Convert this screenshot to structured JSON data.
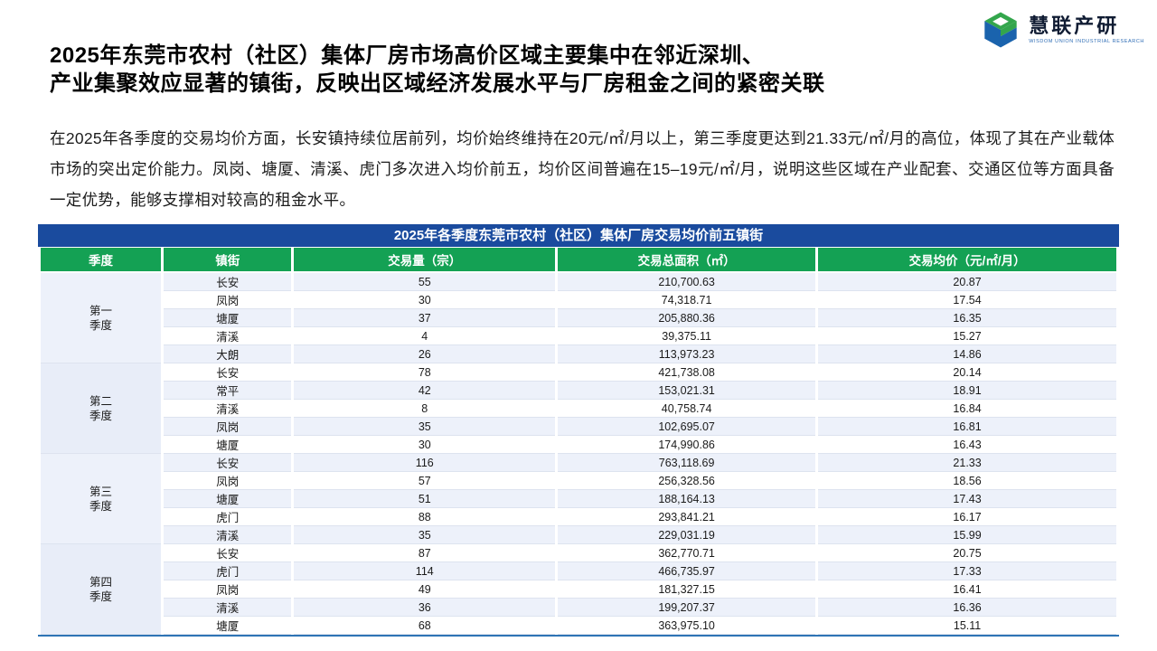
{
  "header": {
    "title_line1": "2025年东莞市农村（社区）集体厂房市场高价区域主要集中在邻近深圳、",
    "title_line2": "产业集聚效应显著的镇街，反映出区域经济发展水平与厂房租金之间的紧密关联",
    "logo": {
      "name": "慧联产研",
      "tagline": "WISDOM UNION INDUSTRIAL RESEARCH"
    }
  },
  "intro": "在2025年各季度的交易均价方面，长安镇持续位居前列，均价始终维持在20元/㎡/月以上，第三季度更达到21.33元/㎡/月的高位，体现了其在产业载体市场的突出定价能力。凤岗、塘厦、清溪、虎门多次进入均价前五，均价区间普遍在15–19元/㎡/月，说明这些区域在产业配套、交通区位等方面具备一定优势，能够支撑相对较高的租金水平。",
  "table": {
    "title": "2025年各季度东莞市农村（社区）集体厂房交易均价前五镇街",
    "columns": [
      "季度",
      "镇街",
      "交易量（宗）",
      "交易总面积（㎡）",
      "交易均价（元/㎡/月）"
    ],
    "quarters": [
      {
        "label": "第一\n季度",
        "rows": [
          [
            "长安",
            "55",
            "210,700.63",
            "20.87"
          ],
          [
            "凤岗",
            "30",
            "74,318.71",
            "17.54"
          ],
          [
            "塘厦",
            "37",
            "205,880.36",
            "16.35"
          ],
          [
            "清溪",
            "4",
            "39,375.11",
            "15.27"
          ],
          [
            "大朗",
            "26",
            "113,973.23",
            "14.86"
          ]
        ]
      },
      {
        "label": "第二\n季度",
        "rows": [
          [
            "长安",
            "78",
            "421,738.08",
            "20.14"
          ],
          [
            "常平",
            "42",
            "153,021.31",
            "18.91"
          ],
          [
            "清溪",
            "8",
            "40,758.74",
            "16.84"
          ],
          [
            "凤岗",
            "35",
            "102,695.07",
            "16.81"
          ],
          [
            "塘厦",
            "30",
            "174,990.86",
            "16.43"
          ]
        ]
      },
      {
        "label": "第三\n季度",
        "rows": [
          [
            "长安",
            "116",
            "763,118.69",
            "21.33"
          ],
          [
            "凤岗",
            "57",
            "256,328.56",
            "18.56"
          ],
          [
            "塘厦",
            "51",
            "188,164.13",
            "17.43"
          ],
          [
            "虎门",
            "88",
            "293,841.21",
            "16.17"
          ],
          [
            "清溪",
            "35",
            "229,031.19",
            "15.99"
          ]
        ]
      },
      {
        "label": "第四\n季度",
        "rows": [
          [
            "长安",
            "87",
            "362,770.71",
            "20.75"
          ],
          [
            "虎门",
            "114",
            "466,735.97",
            "17.33"
          ],
          [
            "凤岗",
            "49",
            "181,327.15",
            "16.41"
          ],
          [
            "清溪",
            "36",
            "199,207.37",
            "16.36"
          ],
          [
            "塘厦",
            "68",
            "363,975.10",
            "15.11"
          ]
        ]
      }
    ]
  },
  "colors": {
    "table_title_bg": "#1a4b9e",
    "header_green": "#14a154",
    "quarter_cell_bg": "#e8edf8",
    "row_alt_bg": "#edf1fa",
    "bottom_line_blue": "#2e74b5",
    "logo_green": "#33a64c",
    "logo_blue": "#1a63ad"
  }
}
